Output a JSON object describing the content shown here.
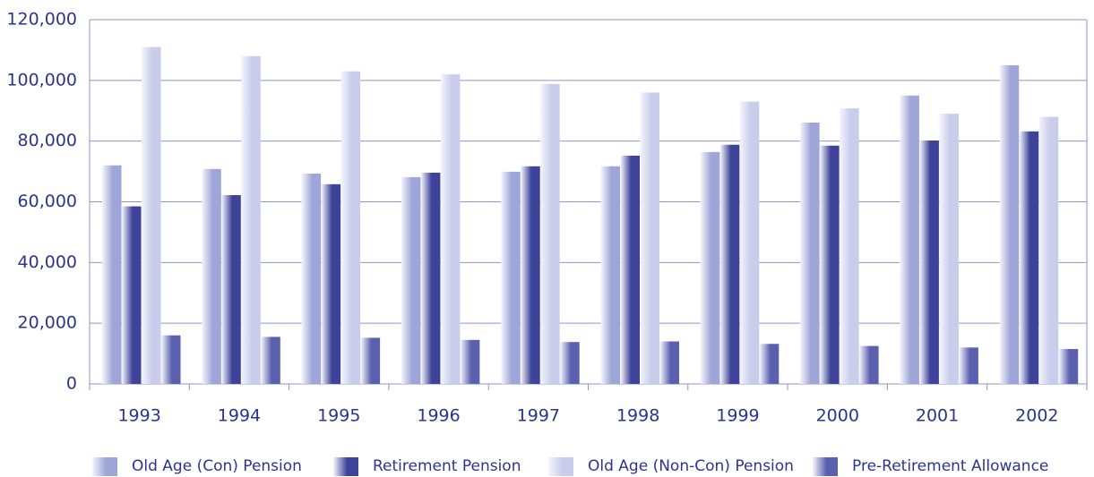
{
  "chart_data": {
    "type": "bar",
    "categories": [
      "1993",
      "1994",
      "1995",
      "1996",
      "1997",
      "1998",
      "1999",
      "2000",
      "2001",
      "2002"
    ],
    "series": [
      {
        "name": "Old Age (Con) Pension",
        "color": "#9ea5d8",
        "values": [
          72000,
          70800,
          69300,
          68100,
          69900,
          71700,
          76400,
          86100,
          95000,
          105000
        ]
      },
      {
        "name": "Retirement Pension",
        "color": "#3c4398",
        "values": [
          58500,
          62200,
          65800,
          69600,
          71700,
          75200,
          78800,
          78500,
          80200,
          83200
        ]
      },
      {
        "name": "Old Age (Non-Con) Pension",
        "color": "#c9cdec",
        "values": [
          111000,
          108000,
          103000,
          102000,
          98800,
          96000,
          93000,
          90800,
          89000,
          88000
        ]
      },
      {
        "name": "Pre-Retirement Allowance",
        "color": "#5a60ae",
        "values": [
          16000,
          15500,
          15200,
          14500,
          13800,
          14000,
          13200,
          12500,
          12000,
          11500
        ]
      }
    ],
    "ylim": [
      0,
      120000
    ],
    "yticks": [
      0,
      {
        "value": 20000,
        "label": "20,000"
      },
      {
        "value": 40000,
        "label": "40,000"
      },
      {
        "value": 60000,
        "label": "60,000"
      },
      {
        "value": 80000,
        "label": "80,000"
      },
      {
        "value": 100000,
        "label": "100,000"
      },
      {
        "value": 120000,
        "label": "120,000"
      }
    ],
    "grid": true
  }
}
